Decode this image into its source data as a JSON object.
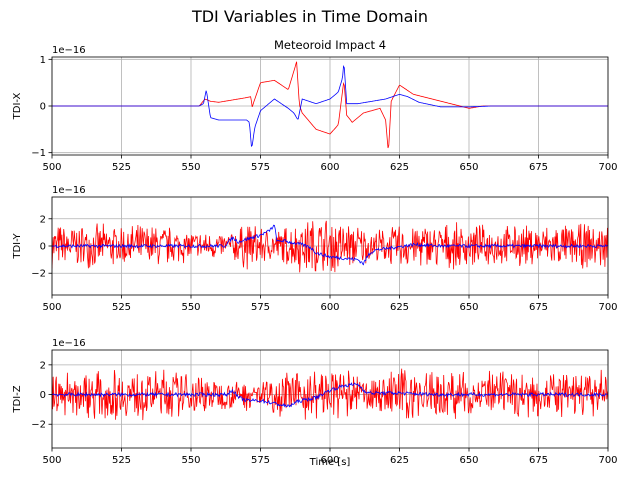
{
  "figure": {
    "suptitle": "TDI Variables in Time Domain",
    "xlabel": "Time [s]"
  },
  "colors": {
    "series_a": "#ff0000",
    "series_b": "#0000ff",
    "grid": "#b0b0b0",
    "axes": "#000000"
  },
  "chart_data": [
    {
      "type": "line",
      "title": "Meteoroid Impact 4",
      "ylabel": "TDI-X",
      "offset_text": "1e−16",
      "xlim": [
        500,
        700
      ],
      "ylim": [
        -1.05,
        1.05
      ],
      "xticks": [
        500,
        525,
        550,
        575,
        600,
        625,
        650,
        675,
        700
      ],
      "yticks": [
        -1,
        0,
        1
      ],
      "grid": true,
      "series": [
        {
          "color": "#ff0000",
          "x": [
            500,
            553,
            555,
            557,
            560,
            565,
            570,
            571.5,
            572,
            575,
            580,
            585,
            588,
            589,
            590,
            595,
            600,
            603,
            605,
            606,
            608,
            612,
            618,
            620,
            621,
            622,
            625,
            630,
            640,
            650,
            655,
            700
          ],
          "y": [
            0,
            0,
            0.15,
            0.1,
            0.08,
            0.13,
            0.18,
            0.2,
            -0.02,
            0.5,
            0.55,
            0.35,
            0.95,
            0.02,
            -0.15,
            -0.5,
            -0.6,
            -0.4,
            0.55,
            -0.2,
            -0.35,
            -0.15,
            -0.05,
            -0.3,
            -1.0,
            0.1,
            0.45,
            0.25,
            0.1,
            -0.05,
            0.0,
            0.0
          ]
        },
        {
          "color": "#0000ff",
          "x": [
            500,
            553,
            554.5,
            555.5,
            557,
            560,
            565,
            570,
            571,
            571.8,
            573,
            575,
            580,
            585,
            587,
            588.5,
            590,
            595,
            600,
            603,
            604.5,
            605,
            606,
            610,
            615,
            620,
            625,
            628,
            632,
            640,
            650,
            658,
            700
          ],
          "y": [
            0,
            0,
            0.05,
            0.35,
            -0.25,
            -0.3,
            -0.3,
            -0.3,
            -0.35,
            -0.92,
            -0.45,
            -0.1,
            0.15,
            -0.05,
            -0.15,
            -0.3,
            0.15,
            0.05,
            0.15,
            0.3,
            0.6,
            0.95,
            0.05,
            0.05,
            0.1,
            0.15,
            0.25,
            0.2,
            0.08,
            -0.02,
            -0.02,
            0.0,
            0.0
          ]
        }
      ]
    },
    {
      "type": "line",
      "title": "",
      "ylabel": "TDI-Y",
      "offset_text": "1e−16",
      "xlim": [
        500,
        700
      ],
      "ylim": [
        -3.6,
        3.6
      ],
      "xticks": [
        500,
        525,
        550,
        575,
        600,
        625,
        650,
        675,
        700
      ],
      "yticks": [
        -2,
        0,
        2
      ],
      "grid": true,
      "series": [
        {
          "color": "#ff0000",
          "note_amplitude": 1.6,
          "envelope_x": [
            500,
            540,
            550,
            563,
            570,
            580,
            590,
            600,
            610,
            615,
            625,
            640,
            660,
            700
          ],
          "envelope_y": [
            1.7,
            1.7,
            1.2,
            1.0,
            1.9,
            1.2,
            2.2,
            2.3,
            1.7,
            1.2,
            1.7,
            1.8,
            1.6,
            1.8
          ]
        },
        {
          "color": "#0000ff",
          "x": [
            500,
            562,
            565,
            567,
            570,
            575,
            578,
            580,
            581,
            583,
            585,
            590,
            593,
            595,
            600,
            605,
            610,
            612,
            614,
            616,
            620,
            625,
            630,
            640,
            700
          ],
          "y": [
            0,
            0,
            0.6,
            0.3,
            0.5,
            0.8,
            1.1,
            1.5,
            0.3,
            0.4,
            0.3,
            0.1,
            -0.1,
            -0.5,
            -0.8,
            -0.9,
            -1.0,
            -1.3,
            -0.6,
            -0.3,
            -0.2,
            -0.05,
            0.1,
            0.0,
            0.0
          ]
        }
      ]
    },
    {
      "type": "line",
      "title": "",
      "ylabel": "TDI-Z",
      "offset_text": "1e−16",
      "xlim": [
        500,
        700
      ],
      "ylim": [
        -3.6,
        3.0
      ],
      "xticks": [
        500,
        525,
        550,
        575,
        600,
        625,
        650,
        675,
        700
      ],
      "yticks": [
        -2,
        0,
        2
      ],
      "grid": true,
      "series": [
        {
          "color": "#ff0000",
          "envelope_x": [
            500,
            540,
            555,
            565,
            575,
            585,
            595,
            605,
            615,
            625,
            640,
            660,
            700
          ],
          "envelope_y": [
            1.7,
            1.8,
            1.4,
            1.0,
            1.3,
            1.6,
            1.9,
            1.8,
            1.1,
            2.0,
            1.8,
            1.6,
            1.7
          ]
        },
        {
          "color": "#0000ff",
          "x": [
            500,
            563,
            565,
            567,
            570,
            575,
            580,
            585,
            588,
            590,
            595,
            600,
            605,
            610,
            612,
            614,
            618,
            625,
            630,
            640,
            700
          ],
          "y": [
            0,
            0,
            0.3,
            -0.2,
            -0.4,
            -0.4,
            -0.6,
            -0.8,
            -0.5,
            -0.4,
            -0.2,
            0.3,
            0.6,
            0.7,
            0.3,
            0.1,
            0.1,
            0.1,
            0.05,
            0.0,
            0.0
          ]
        }
      ]
    }
  ]
}
